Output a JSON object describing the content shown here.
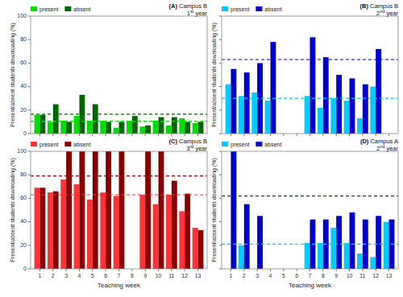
{
  "chart_data": [
    {
      "type": "bar",
      "title": "(A) Campus B\n1st year",
      "ylabel": "Present/absent students downloading (%)",
      "categories": [
        1,
        2,
        3,
        4,
        5,
        6,
        7,
        8,
        9,
        10,
        11,
        12,
        13
      ],
      "series": [
        {
          "name": "present",
          "color": "#00dd00",
          "values": [
            16,
            10,
            11,
            15,
            11,
            11,
            5,
            11,
            6,
            11,
            7,
            13,
            9
          ],
          "average": 10.5
        },
        {
          "name": "absent",
          "color": "#006600",
          "values": [
            16,
            25,
            10,
            33,
            25,
            10,
            10,
            15,
            7,
            14,
            14,
            10,
            10
          ],
          "average": 16.5
        }
      ],
      "ylim": [
        0,
        100
      ],
      "yticks": [
        0,
        20,
        40,
        60,
        80,
        100
      ],
      "legend": "upper left",
      "tick_labels": "y"
    },
    {
      "type": "bar",
      "title": "(B) Campus B\n2nd year",
      "ylabel": "Present/absent students downloading (%)",
      "categories": [
        1,
        2,
        3,
        4,
        5,
        6,
        7,
        8,
        9,
        10,
        11,
        12,
        13
      ],
      "series": [
        {
          "name": "present",
          "color": "#00ccff",
          "values": [
            42,
            32,
            35,
            28,
            0,
            0,
            32,
            22,
            30,
            28,
            13,
            40,
            0
          ],
          "average": 30
        },
        {
          "name": "absent",
          "color": "#0000cc",
          "values": [
            55,
            52,
            60,
            78,
            0,
            0,
            82,
            65,
            50,
            47,
            42,
            72,
            0
          ],
          "average": 63
        }
      ],
      "ylim": [
        0,
        100
      ],
      "yticks": [
        0,
        20,
        40,
        60,
        80,
        100
      ],
      "legend": "upper left",
      "tick_labels": false
    },
    {
      "type": "bar",
      "title": "(C) Campus B\n3rd year",
      "xlabel": "Teaching week",
      "ylabel": "Present/absent students downloading (%)",
      "categories": [
        1,
        2,
        3,
        4,
        5,
        6,
        7,
        8,
        9,
        10,
        11,
        12,
        13
      ],
      "series": [
        {
          "name": "present",
          "color": "#ff3333",
          "values": [
            69,
            65,
            76,
            72,
            59,
            65,
            62,
            0,
            63,
            55,
            63,
            49,
            35
          ],
          "average": 63
        },
        {
          "name": "absent",
          "color": "#880000",
          "values": [
            69,
            66,
            100,
            100,
            100,
            100,
            100,
            0,
            100,
            100,
            75,
            64,
            33
          ],
          "average": 79
        }
      ],
      "ylim": [
        0,
        100
      ],
      "yticks": [
        0,
        20,
        40,
        60,
        80,
        100
      ],
      "legend": "upper left"
    },
    {
      "type": "bar",
      "title": "(D) Campus A\n2nd year",
      "xlabel": "Teaching week",
      "ylabel": "Present/absent students downloading (%)",
      "categories": [
        1,
        2,
        3,
        4,
        5,
        6,
        7,
        8,
        9,
        10,
        11,
        12,
        13
      ],
      "series": [
        {
          "name": "present",
          "color": "#00ccff",
          "values": [
            0,
            20,
            0,
            0,
            0,
            0,
            22,
            22,
            35,
            22,
            13,
            10,
            40
          ],
          "average": 21
        },
        {
          "name": "absent",
          "color": "#0000cc",
          "values": [
            100,
            55,
            45,
            0,
            0,
            0,
            42,
            42,
            45,
            48,
            42,
            45,
            42
          ],
          "average": 62
        }
      ],
      "ylim": [
        0,
        100
      ],
      "yticks": [
        0,
        20,
        40,
        60,
        80,
        100
      ],
      "legend": "upper left",
      "tick_labels": "x"
    }
  ]
}
